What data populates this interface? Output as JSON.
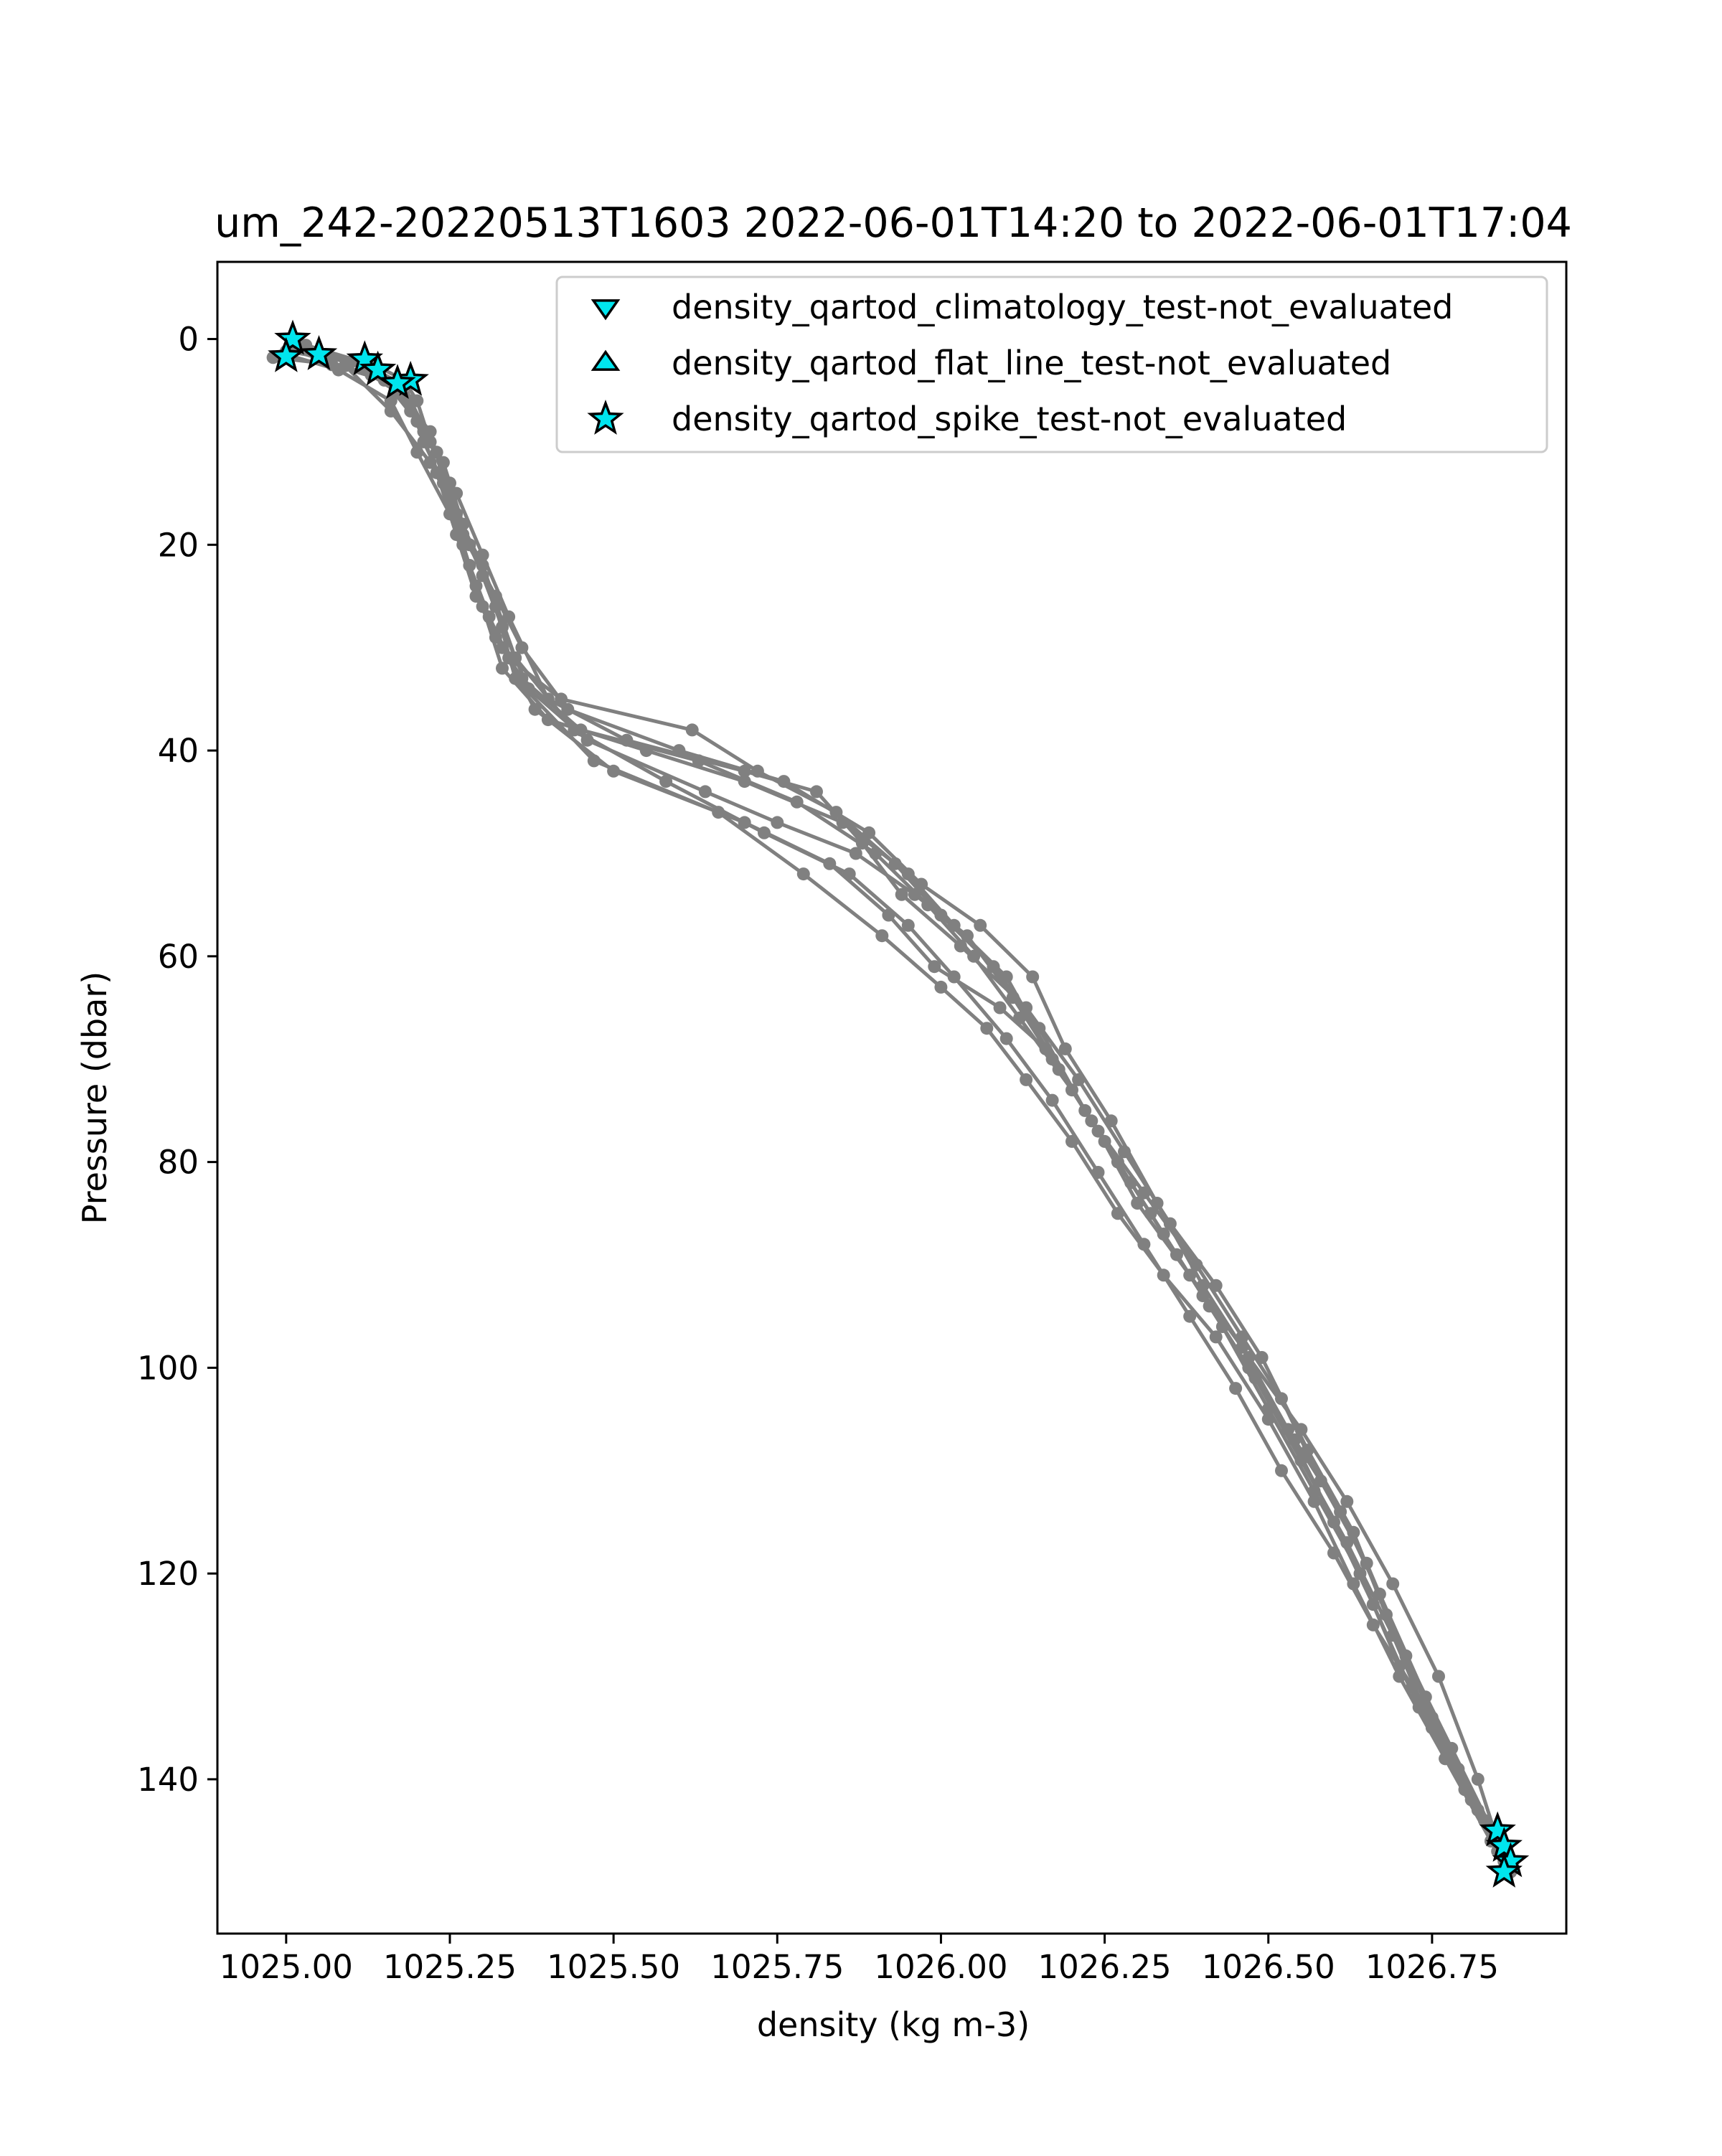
{
  "chart_data": {
    "type": "scatter",
    "title": "um_242-20220513T1603 2022-06-01T14:20 to 2022-06-01T17:04",
    "xlabel": "density (kg m-3)",
    "ylabel": "Pressure (dbar)",
    "xlim": [
      1024.895,
      1026.955
    ],
    "ylim": [
      155,
      -7.5
    ],
    "y_inverted": true,
    "grid": false,
    "xticks": [
      1025.0,
      1025.25,
      1025.5,
      1025.75,
      1026.0,
      1026.25,
      1026.5,
      1026.75
    ],
    "xtick_labels": [
      "1025.00",
      "1025.25",
      "1025.50",
      "1025.75",
      "1026.00",
      "1026.25",
      "1026.50",
      "1026.75"
    ],
    "yticks": [
      0,
      20,
      40,
      60,
      80,
      100,
      120,
      140
    ],
    "ytick_labels": [
      "0",
      "20",
      "40",
      "60",
      "80",
      "100",
      "120",
      "140"
    ],
    "legend_position": "top-right",
    "profile_color": "#808080",
    "flag_fill_color": "#00e5ee",
    "flag_edge_color": "#000000",
    "legend": [
      {
        "label": "density_qartod_climatology_test-not_evaluated",
        "marker": "triangle-down"
      },
      {
        "label": "density_qartod_flat_line_test-not_evaluated",
        "marker": "triangle-up"
      },
      {
        "label": "density_qartod_spike_test-not_evaluated",
        "marker": "star"
      }
    ],
    "profiles": [
      {
        "points": [
          [
            1025.01,
            0.3
          ],
          [
            1025.05,
            1.5
          ],
          [
            1025.12,
            2
          ],
          [
            1025.18,
            4
          ],
          [
            1025.2,
            6
          ],
          [
            1025.22,
            10
          ],
          [
            1025.25,
            14
          ],
          [
            1025.27,
            20
          ],
          [
            1025.3,
            26
          ],
          [
            1025.33,
            32
          ],
          [
            1025.4,
            37
          ],
          [
            1025.55,
            40
          ],
          [
            1025.7,
            43
          ],
          [
            1025.85,
            47
          ],
          [
            1025.95,
            52
          ],
          [
            1026.02,
            57
          ],
          [
            1026.1,
            62
          ],
          [
            1026.17,
            70
          ],
          [
            1026.24,
            77
          ],
          [
            1026.3,
            84
          ],
          [
            1026.38,
            91
          ],
          [
            1026.46,
            98
          ],
          [
            1026.53,
            106
          ],
          [
            1026.6,
            115
          ],
          [
            1026.66,
            123
          ],
          [
            1026.73,
            133
          ],
          [
            1026.8,
            141
          ],
          [
            1026.85,
            146
          ]
        ]
      },
      {
        "points": [
          [
            1024.99,
            1.7
          ],
          [
            1025.07,
            2.5
          ],
          [
            1025.15,
            4
          ],
          [
            1025.2,
            8
          ],
          [
            1025.23,
            13
          ],
          [
            1025.26,
            19
          ],
          [
            1025.29,
            24
          ],
          [
            1025.32,
            29
          ],
          [
            1025.36,
            33
          ],
          [
            1025.45,
            38
          ],
          [
            1025.63,
            41
          ],
          [
            1025.78,
            45
          ],
          [
            1025.9,
            50
          ],
          [
            1025.98,
            55
          ],
          [
            1026.05,
            60
          ],
          [
            1026.12,
            66
          ],
          [
            1026.2,
            73
          ],
          [
            1026.27,
            80
          ],
          [
            1026.34,
            87
          ],
          [
            1026.41,
            94
          ],
          [
            1026.48,
            101
          ],
          [
            1026.55,
            109
          ],
          [
            1026.62,
            117
          ],
          [
            1026.69,
            126
          ],
          [
            1026.75,
            135
          ],
          [
            1026.82,
            143
          ],
          [
            1026.86,
            148
          ]
        ]
      },
      {
        "points": [
          [
            1025.0,
            1.2
          ],
          [
            1025.1,
            2.2
          ],
          [
            1025.17,
            5
          ],
          [
            1025.22,
            9
          ],
          [
            1025.25,
            16
          ],
          [
            1025.28,
            22
          ],
          [
            1025.31,
            27
          ],
          [
            1025.34,
            31
          ],
          [
            1025.42,
            35
          ],
          [
            1025.62,
            38
          ],
          [
            1025.72,
            42
          ],
          [
            1025.84,
            46
          ],
          [
            1025.93,
            51
          ],
          [
            1026.0,
            56
          ],
          [
            1026.08,
            61
          ],
          [
            1026.15,
            67
          ],
          [
            1026.22,
            75
          ],
          [
            1026.29,
            82
          ],
          [
            1026.36,
            89
          ],
          [
            1026.43,
            96
          ],
          [
            1026.5,
            104
          ],
          [
            1026.57,
            112
          ],
          [
            1026.64,
            120
          ],
          [
            1026.7,
            129
          ],
          [
            1026.77,
            138
          ],
          [
            1026.84,
            145
          ]
        ]
      },
      {
        "points": [
          [
            1025.03,
            0.6
          ],
          [
            1025.14,
            3
          ],
          [
            1025.19,
            7
          ],
          [
            1025.24,
            12
          ],
          [
            1025.27,
            18
          ],
          [
            1025.3,
            23
          ],
          [
            1025.33,
            28
          ],
          [
            1025.37,
            34
          ],
          [
            1025.46,
            39
          ],
          [
            1025.64,
            44
          ],
          [
            1025.75,
            47
          ],
          [
            1025.87,
            50
          ],
          [
            1025.96,
            54
          ],
          [
            1026.04,
            58
          ],
          [
            1026.11,
            64
          ],
          [
            1026.18,
            71
          ],
          [
            1026.25,
            78
          ],
          [
            1026.32,
            85
          ],
          [
            1026.4,
            93
          ],
          [
            1026.47,
            100
          ],
          [
            1026.54,
            107
          ],
          [
            1026.61,
            114
          ],
          [
            1026.67,
            122
          ],
          [
            1026.74,
            132
          ],
          [
            1026.81,
            142
          ],
          [
            1026.86,
            147
          ]
        ]
      },
      {
        "points": [
          [
            1025.0,
            1.5
          ],
          [
            1025.08,
            3
          ],
          [
            1025.16,
            6
          ],
          [
            1025.2,
            11
          ],
          [
            1025.25,
            17
          ],
          [
            1025.29,
            25
          ],
          [
            1025.33,
            30
          ],
          [
            1025.38,
            36
          ],
          [
            1025.5,
            42
          ],
          [
            1025.7,
            47
          ],
          [
            1025.83,
            51
          ],
          [
            1025.92,
            56
          ],
          [
            1025.99,
            61
          ],
          [
            1026.09,
            65
          ],
          [
            1026.16,
            69
          ],
          [
            1026.23,
            76
          ],
          [
            1026.31,
            83
          ],
          [
            1026.39,
            90
          ],
          [
            1026.46,
            97
          ],
          [
            1026.52,
            103
          ],
          [
            1026.58,
            111
          ],
          [
            1026.65,
            119
          ],
          [
            1026.71,
            128
          ],
          [
            1026.78,
            137
          ],
          [
            1026.85,
            146
          ]
        ]
      },
      {
        "points": [
          [
            1025.02,
            0.9
          ],
          [
            1025.12,
            2.8
          ],
          [
            1025.18,
            5.5
          ],
          [
            1025.21,
            9
          ],
          [
            1025.26,
            15
          ],
          [
            1025.3,
            21
          ],
          [
            1025.34,
            27
          ],
          [
            1025.4,
            35
          ],
          [
            1025.52,
            39
          ],
          [
            1025.7,
            42
          ],
          [
            1025.81,
            44
          ],
          [
            1025.88,
            49
          ],
          [
            1025.94,
            54
          ],
          [
            1026.03,
            59
          ],
          [
            1026.13,
            65
          ],
          [
            1026.21,
            72
          ],
          [
            1026.28,
            79
          ],
          [
            1026.35,
            86
          ],
          [
            1026.42,
            92
          ],
          [
            1026.49,
            99
          ],
          [
            1026.56,
            108
          ],
          [
            1026.63,
            116
          ],
          [
            1026.68,
            124
          ],
          [
            1026.75,
            134
          ],
          [
            1026.83,
            144
          ],
          [
            1026.87,
            149
          ]
        ]
      },
      {
        "points": [
          [
            1025.01,
            1.1
          ],
          [
            1025.13,
            3.5
          ],
          [
            1025.19,
            6
          ],
          [
            1025.23,
            11
          ],
          [
            1025.27,
            19
          ],
          [
            1025.32,
            25
          ],
          [
            1025.36,
            30
          ],
          [
            1025.43,
            36
          ],
          [
            1025.6,
            40
          ],
          [
            1025.76,
            43
          ],
          [
            1025.89,
            48
          ],
          [
            1025.97,
            53
          ],
          [
            1026.06,
            57
          ],
          [
            1026.14,
            62
          ],
          [
            1026.19,
            69
          ],
          [
            1026.26,
            76
          ],
          [
            1026.33,
            84
          ],
          [
            1026.4,
            92
          ],
          [
            1026.47,
            99
          ],
          [
            1026.55,
            106
          ],
          [
            1026.62,
            113
          ],
          [
            1026.69,
            121
          ],
          [
            1026.76,
            130
          ],
          [
            1026.82,
            140
          ],
          [
            1026.86,
            148
          ]
        ]
      },
      {
        "points": [
          [
            1024.98,
            1.8
          ],
          [
            1025.09,
            2.6
          ],
          [
            1025.16,
            7
          ],
          [
            1025.22,
            12
          ],
          [
            1025.26,
            17
          ],
          [
            1025.3,
            22
          ],
          [
            1025.35,
            31
          ],
          [
            1025.44,
            38
          ],
          [
            1025.58,
            43
          ],
          [
            1025.73,
            48
          ],
          [
            1025.86,
            52
          ],
          [
            1025.95,
            57
          ],
          [
            1026.02,
            62
          ],
          [
            1026.1,
            68
          ],
          [
            1026.17,
            74
          ],
          [
            1026.24,
            81
          ],
          [
            1026.31,
            88
          ],
          [
            1026.38,
            95
          ],
          [
            1026.45,
            102
          ],
          [
            1026.52,
            110
          ],
          [
            1026.6,
            118
          ],
          [
            1026.66,
            125
          ],
          [
            1026.72,
            131
          ],
          [
            1026.79,
            139
          ],
          [
            1026.85,
            147
          ]
        ]
      },
      {
        "points": [
          [
            1025.02,
            0.4
          ],
          [
            1025.11,
            2.1
          ],
          [
            1025.18,
            4.5
          ],
          [
            1025.21,
            10
          ],
          [
            1025.24,
            14
          ],
          [
            1025.28,
            20
          ],
          [
            1025.32,
            26
          ],
          [
            1025.35,
            33
          ],
          [
            1025.47,
            41
          ],
          [
            1025.66,
            46
          ],
          [
            1025.79,
            52
          ],
          [
            1025.91,
            58
          ],
          [
            1026.0,
            63
          ],
          [
            1026.07,
            67
          ],
          [
            1026.13,
            72
          ],
          [
            1026.2,
            78
          ],
          [
            1026.27,
            85
          ],
          [
            1026.34,
            91
          ],
          [
            1026.42,
            97
          ],
          [
            1026.5,
            105
          ],
          [
            1026.57,
            113
          ],
          [
            1026.63,
            121
          ],
          [
            1026.7,
            130
          ],
          [
            1026.77,
            138
          ],
          [
            1026.84,
            146
          ]
        ]
      }
    ],
    "spike_test_flags": [
      [
        1025.01,
        0.0
      ],
      [
        1025.0,
        1.7
      ],
      [
        1025.05,
        1.5
      ],
      [
        1025.12,
        2
      ],
      [
        1025.14,
        3
      ],
      [
        1025.19,
        4
      ],
      [
        1025.17,
        4.3
      ],
      [
        1026.85,
        145
      ],
      [
        1026.86,
        146.5
      ],
      [
        1026.87,
        148
      ],
      [
        1026.86,
        149
      ]
    ]
  }
}
